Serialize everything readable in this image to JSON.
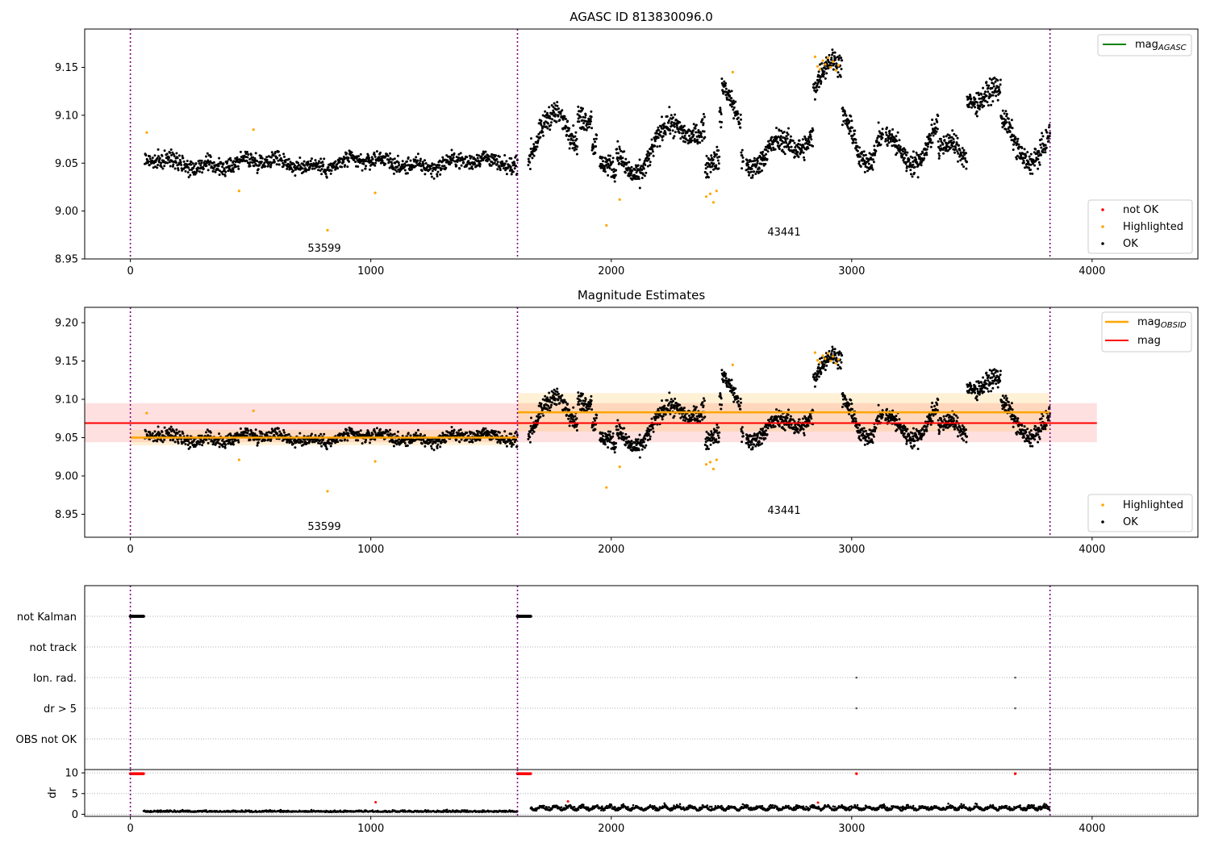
{
  "figure": {
    "background": "#ffffff"
  },
  "chart_data": [
    {
      "type": "scatter",
      "title": "AGASC ID 813830096.0",
      "xlim": [
        -190,
        4440
      ],
      "ylim": [
        8.95,
        9.19
      ],
      "xticks": [
        0,
        1000,
        2000,
        3000,
        4000
      ],
      "yticks": [
        8.95,
        9.0,
        9.05,
        9.1,
        9.15
      ],
      "ytick_labels": [
        "8.95",
        "9.00",
        "9.05",
        "9.10",
        "9.15"
      ],
      "observation_boundaries": [
        0,
        1610,
        3825
      ],
      "observation_labels": [
        {
          "text": "53599",
          "x": 805,
          "y": 8.963
        },
        {
          "text": "43441",
          "x": 2718,
          "y": 8.979
        }
      ],
      "segments": [
        {
          "x_start": 0,
          "x_end": 1610,
          "mean": 9.05,
          "scatter": 0.01
        },
        {
          "x_start": 1610,
          "x_end": 3825,
          "mean": 9.083,
          "scatter": 0.025
        }
      ],
      "highlighted_points": [
        {
          "x": 68,
          "y": 9.082
        },
        {
          "x": 452,
          "y": 9.021
        },
        {
          "x": 512,
          "y": 9.085
        },
        {
          "x": 820,
          "y": 8.98
        },
        {
          "x": 1018,
          "y": 9.019
        },
        {
          "x": 1980,
          "y": 8.985
        },
        {
          "x": 2035,
          "y": 9.012
        },
        {
          "x": 2395,
          "y": 9.015
        },
        {
          "x": 2412,
          "y": 9.018
        },
        {
          "x": 2425,
          "y": 9.009
        },
        {
          "x": 2438,
          "y": 9.021
        },
        {
          "x": 2505,
          "y": 9.145
        },
        {
          "x": 2848,
          "y": 9.161
        },
        {
          "x": 2858,
          "y": 9.151
        },
        {
          "x": 2868,
          "y": 9.148
        },
        {
          "x": 2880,
          "y": 9.157
        },
        {
          "x": 2890,
          "y": 9.153
        },
        {
          "x": 2902,
          "y": 9.16
        },
        {
          "x": 2912,
          "y": 9.15
        },
        {
          "x": 2922,
          "y": 9.156
        },
        {
          "x": 2935,
          "y": 9.147
        },
        {
          "x": 2945,
          "y": 9.152
        }
      ],
      "legends": [
        {
          "position": "upper right",
          "entries": [
            {
              "label": "mag",
              "subscript": "AGASC",
              "color": "#008000",
              "marker": "line"
            }
          ]
        },
        {
          "position": "lower right",
          "entries": [
            {
              "label": "not OK",
              "color": "#ff0000",
              "marker": "dot"
            },
            {
              "label": "Highlighted",
              "color": "#ffa500",
              "marker": "dot"
            },
            {
              "label": "OK",
              "color": "#000000",
              "marker": "dot"
            }
          ]
        }
      ]
    },
    {
      "type": "scatter",
      "title": "Magnitude Estimates",
      "xlim": [
        -190,
        4440
      ],
      "ylim": [
        8.92,
        9.22
      ],
      "xticks": [
        0,
        1000,
        2000,
        3000,
        4000
      ],
      "yticks": [
        8.95,
        9.0,
        9.05,
        9.1,
        9.15,
        9.2
      ],
      "ytick_labels": [
        "8.95",
        "9.00",
        "9.05",
        "9.10",
        "9.15",
        "9.20"
      ],
      "observation_boundaries": [
        0,
        1610,
        3825
      ],
      "observation_labels": [
        {
          "text": "53599",
          "x": 805,
          "y": 8.93
        },
        {
          "text": "43441",
          "x": 2718,
          "y": 8.955
        }
      ],
      "mag": {
        "value": 9.069,
        "band": [
          9.044,
          9.095
        ],
        "x_range": [
          -190,
          4020
        ],
        "color": "#ff0000"
      },
      "mag_obsid": [
        {
          "x_start": 0,
          "x_end": 1610,
          "value": 9.05,
          "band": [
            9.04,
            9.06
          ]
        },
        {
          "x_start": 1610,
          "x_end": 3825,
          "value": 9.083,
          "band": [
            9.058,
            9.108
          ]
        }
      ],
      "legends": [
        {
          "position": "upper right",
          "entries": [
            {
              "label": "mag",
              "subscript": "OBSID",
              "color": "#ffa500",
              "marker": "line"
            },
            {
              "label": "mag",
              "subscript": "",
              "color": "#ff0000",
              "marker": "line"
            }
          ]
        },
        {
          "position": "lower right",
          "entries": [
            {
              "label": "Highlighted",
              "color": "#ffa500",
              "marker": "dot"
            },
            {
              "label": "OK",
              "color": "#000000",
              "marker": "dot"
            }
          ]
        }
      ]
    },
    {
      "type": "scatter",
      "title": "",
      "xlim": [
        -190,
        4440
      ],
      "categories": [
        "not Kalman",
        "not track",
        "Ion. rad.",
        "dr > 5",
        "OBS not OK"
      ],
      "flags": [
        {
          "category": "not Kalman",
          "x": [
            0,
            55
          ],
          "kind": "range"
        },
        {
          "category": "not Kalman",
          "x": [
            1610,
            1665
          ],
          "kind": "range"
        },
        {
          "category": "Ion. rad.",
          "x": [
            3020,
            3680
          ],
          "kind": "points"
        },
        {
          "category": "dr > 5",
          "x": [
            3020,
            3680
          ],
          "kind": "points"
        }
      ],
      "observation_boundaries": [
        0,
        1610,
        3825
      ]
    },
    {
      "type": "scatter",
      "title": "",
      "ylabel": "dr",
      "xlim": [
        -190,
        4440
      ],
      "ylim": [
        -0.5,
        10.8
      ],
      "xticks": [
        0,
        1000,
        2000,
        3000,
        4000
      ],
      "yticks": [
        0,
        5,
        10
      ],
      "capped_points_x": [
        [
          0,
          55
        ],
        [
          1610,
          1665
        ],
        [
          3020,
          3020
        ],
        [
          3680,
          3680
        ]
      ],
      "red_points": [
        {
          "x": 1020,
          "y": 2.9
        },
        {
          "x": 1820,
          "y": 3.1
        },
        {
          "x": 2860,
          "y": 2.8
        }
      ],
      "observation_boundaries": [
        0,
        1610,
        3825
      ]
    }
  ]
}
